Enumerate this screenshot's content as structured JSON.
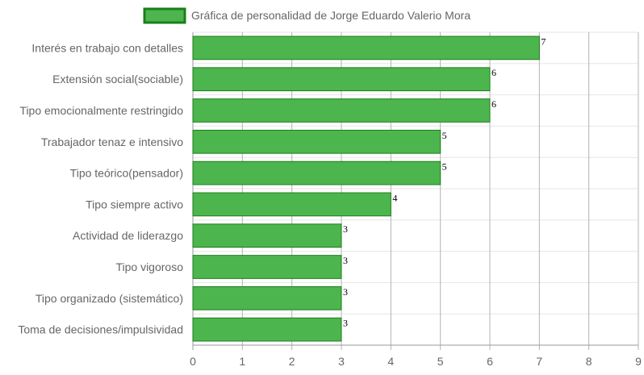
{
  "chart_data": {
    "type": "bar",
    "orientation": "horizontal",
    "categories": [
      "Interés en trabajo con detalles",
      "Extensión social(sociable)",
      "Tipo emocionalmente restringido",
      "Trabajador tenaz e intensivo",
      "Tipo teórico(pensador)",
      "Tipo siempre activo",
      "Actividad de liderazgo",
      "Tipo vigoroso",
      "Tipo organizado (sistemático)",
      "Toma de decisiones/impulsividad"
    ],
    "series": [
      {
        "name": "Gráfica de personalidad de Jorge Eduardo Valerio Mora",
        "values": [
          7,
          6,
          6,
          5,
          5,
          4,
          3,
          3,
          3,
          3
        ],
        "color": "#4db54d",
        "border_color": "#1a7f1a"
      }
    ],
    "x_ticks": [
      "0",
      "1",
      "2",
      "3",
      "4",
      "5",
      "6",
      "7",
      "8",
      "9"
    ],
    "xlim": [
      0,
      9
    ],
    "grid": true,
    "legend": "top-center",
    "data_labels": true
  }
}
